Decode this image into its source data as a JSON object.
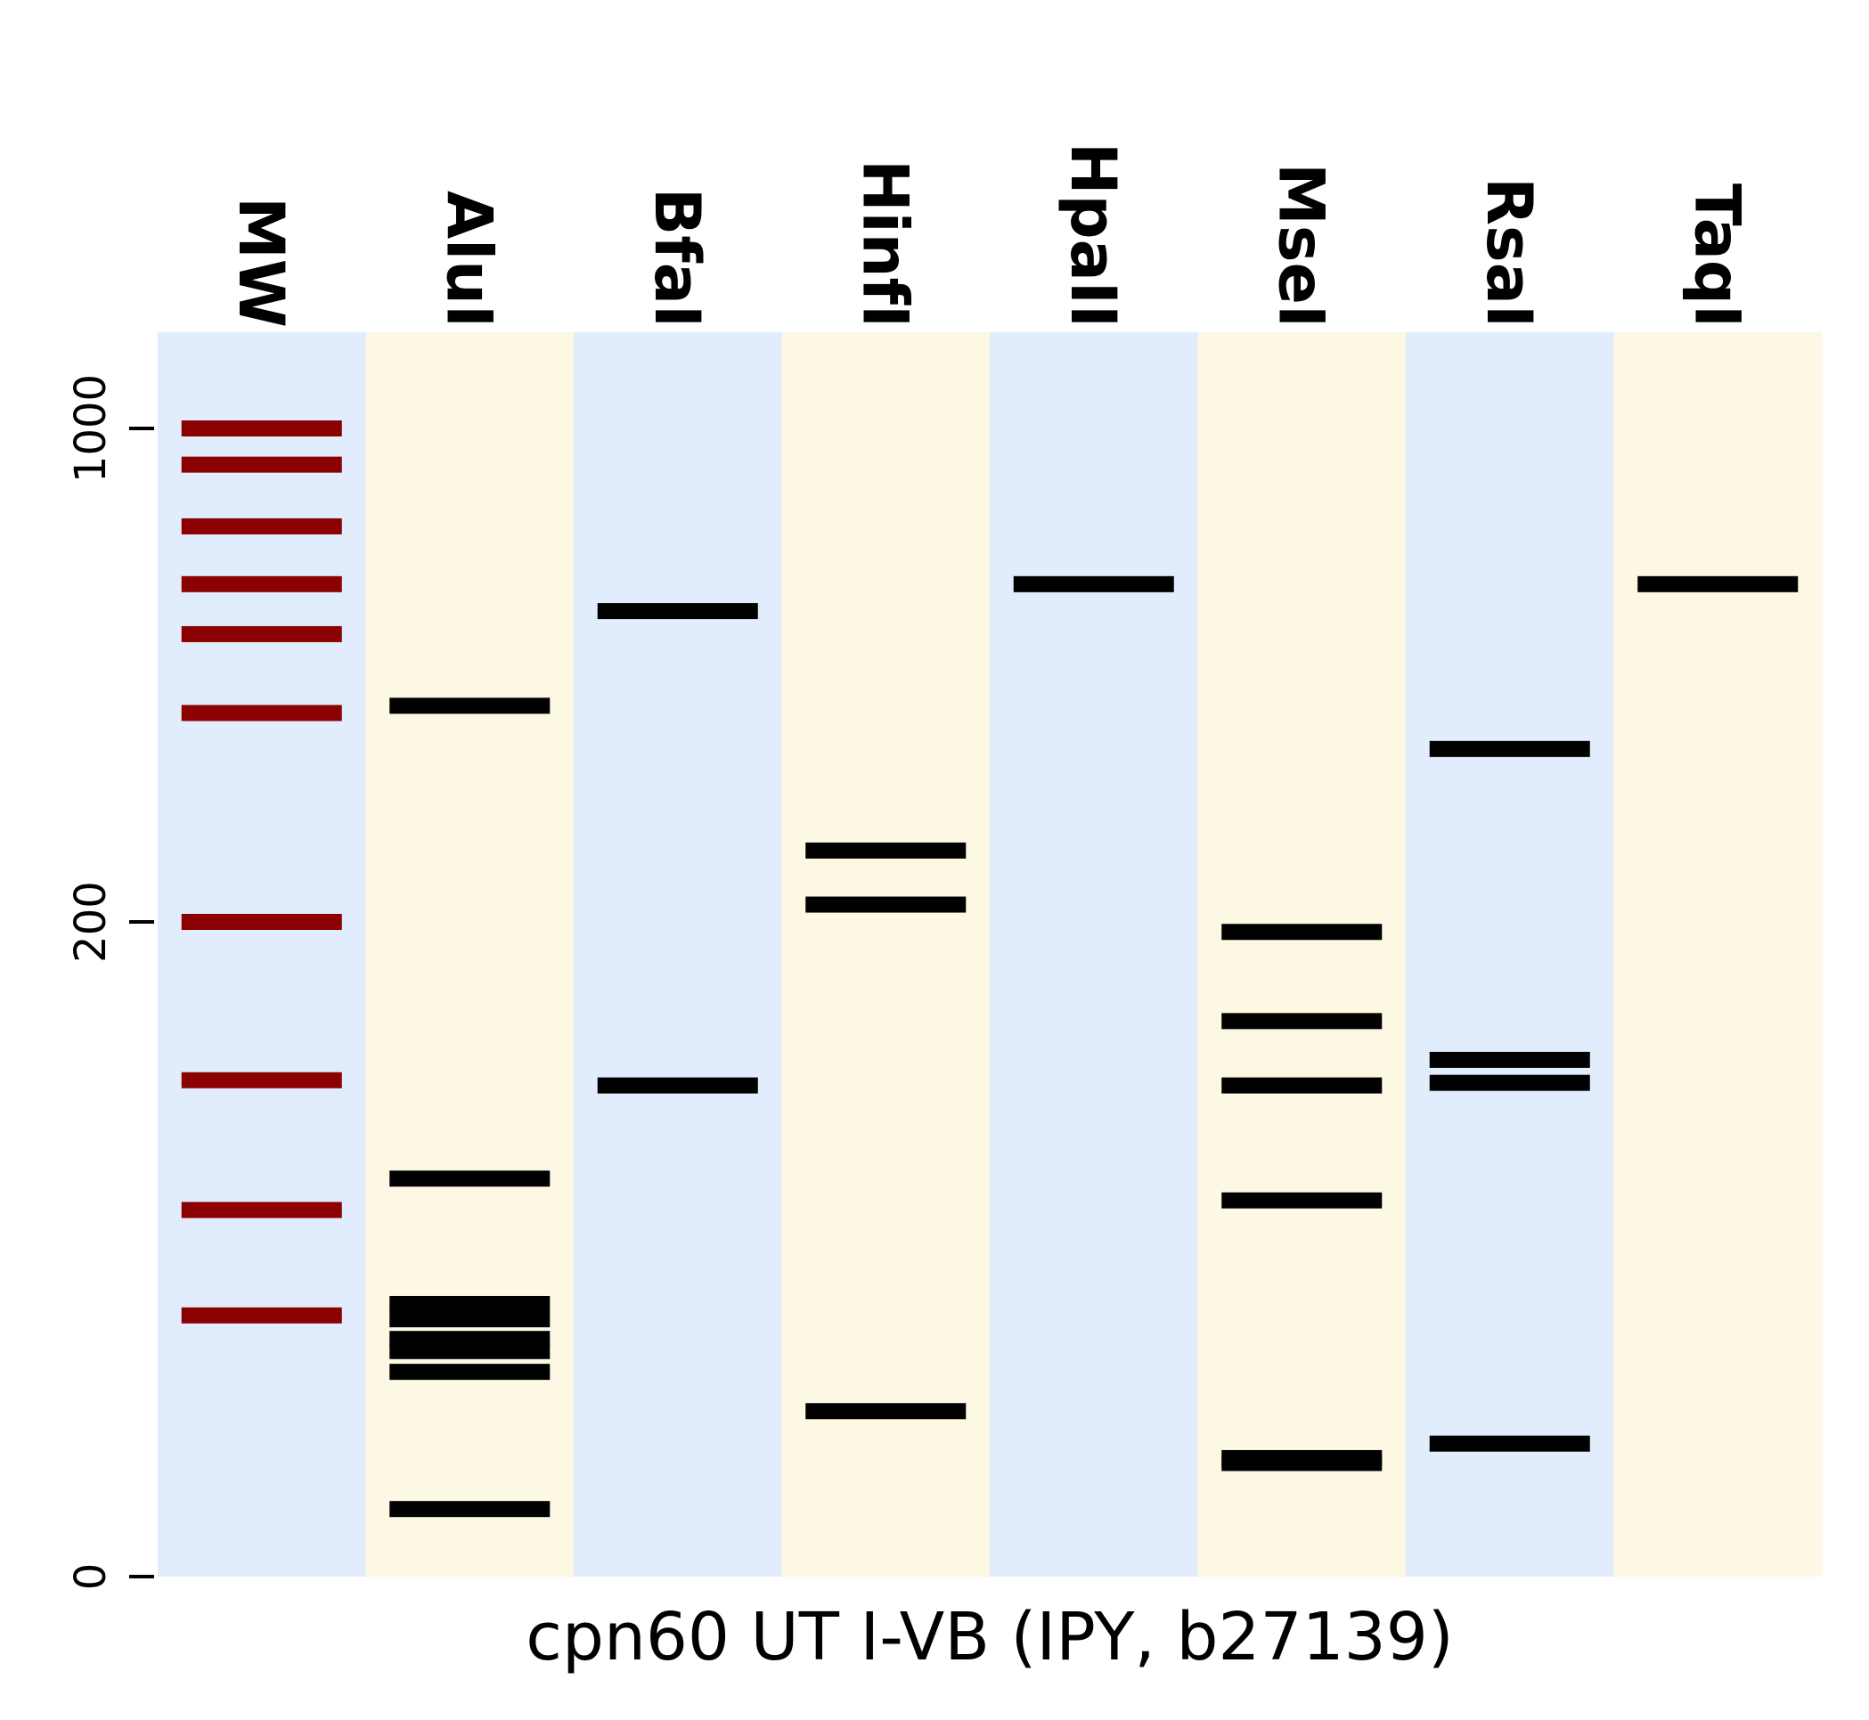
{
  "chart_data": {
    "type": "gel",
    "xlabel": "cpn60 UT I-VB (IPY, b27139)",
    "lanes": [
      "MW",
      "AluI",
      "BfaI",
      "HinfI",
      "HpaII",
      "MseI",
      "RsaI",
      "TaqI"
    ],
    "yticks": [
      {
        "value": 0,
        "label": "0"
      },
      {
        "value": 200,
        "label": "200"
      },
      {
        "value": 1000,
        "label": "1000"
      }
    ],
    "bands": {
      "MW": [
        1000,
        900,
        750,
        630,
        540,
        420,
        200,
        130,
        85,
        55
      ],
      "AluI": [
        430,
        95,
        58,
        54,
        49,
        46,
        41,
        12
      ],
      "BfaI": [
        580,
        128
      ],
      "HinfI": [
        262,
        214,
        32
      ],
      "HpaII": [
        630
      ],
      "MseI": [
        195,
        154,
        128,
        88,
        22,
        21
      ],
      "RsaI": [
        373,
        138,
        129,
        25
      ],
      "TaqI": [
        630
      ]
    },
    "colors": {
      "lane_bg": [
        "#e1ecfc",
        "#fdf8e3"
      ],
      "marker_band": "#8b0000",
      "band": "#000000"
    }
  }
}
